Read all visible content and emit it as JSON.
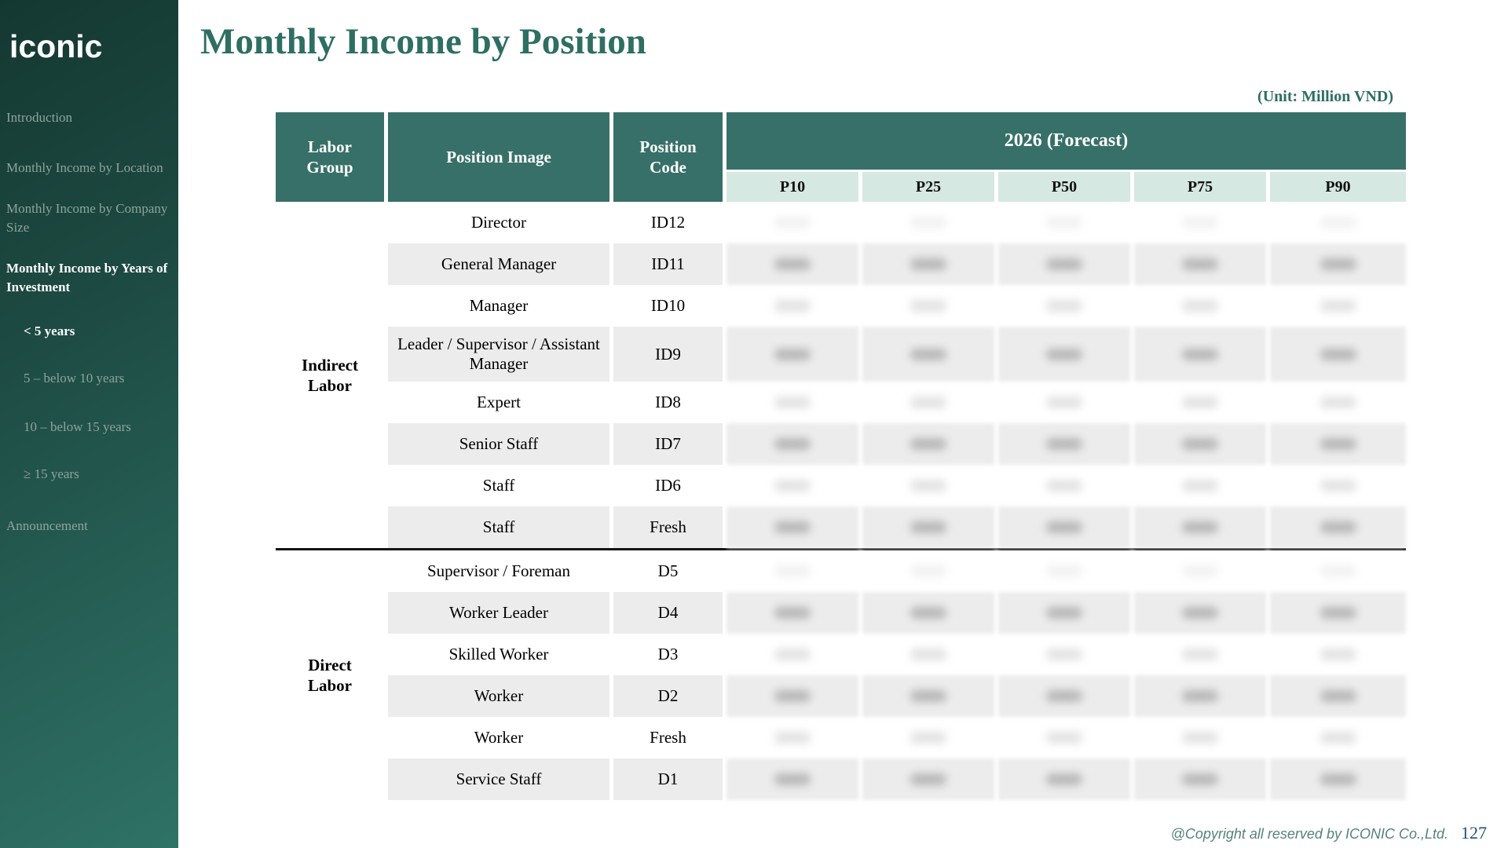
{
  "sidebar": {
    "logo": "iconic",
    "items": [
      {
        "label": "Introduction",
        "active": false,
        "indent": false
      },
      {
        "label": "Monthly Income by Location",
        "active": false,
        "indent": false
      },
      {
        "label": "Monthly Income by Company Size",
        "active": false,
        "indent": false
      },
      {
        "label": "Monthly Income by Years of Investment",
        "active": true,
        "indent": false
      },
      {
        "label": "< 5 years",
        "active": true,
        "indent": true
      },
      {
        "label": "5 – below 10 years",
        "active": false,
        "indent": true
      },
      {
        "label": "10 – below 15 years",
        "active": false,
        "indent": true
      },
      {
        "label": "≥ 15 years",
        "active": false,
        "indent": true
      },
      {
        "label": "Announcement",
        "active": false,
        "indent": false
      }
    ]
  },
  "header": {
    "title": "Monthly Income by Position",
    "unit_label": "(Unit: Million VND)"
  },
  "table": {
    "columns": {
      "labor_group": "Labor\nGroup",
      "position_image": "Position Image",
      "position_code": "Position\nCode",
      "forecast": "2026 (Forecast)"
    },
    "percentiles": [
      "P10",
      "P25",
      "P50",
      "P75",
      "P90"
    ],
    "groups": [
      {
        "name": "Indirect\nLabor",
        "rows": [
          {
            "position": "Director",
            "code": "ID12",
            "tall": false
          },
          {
            "position": "General Manager",
            "code": "ID11",
            "tall": false
          },
          {
            "position": "Manager",
            "code": "ID10",
            "tall": false
          },
          {
            "position": "Leader / Supervisor / Assistant Manager",
            "code": "ID9",
            "tall": true
          },
          {
            "position": "Expert",
            "code": "ID8",
            "tall": false
          },
          {
            "position": "Senior Staff",
            "code": "ID7",
            "tall": false
          },
          {
            "position": "Staff",
            "code": "ID6",
            "tall": false
          },
          {
            "position": "Staff",
            "code": "Fresh",
            "tall": false
          }
        ]
      },
      {
        "name": "Direct\nLabor",
        "rows": [
          {
            "position": "Supervisor / Foreman",
            "code": "D5",
            "tall": false
          },
          {
            "position": "Worker Leader",
            "code": "D4",
            "tall": false
          },
          {
            "position": "Skilled Worker",
            "code": "D3",
            "tall": false
          },
          {
            "position": "Worker",
            "code": "D2",
            "tall": false
          },
          {
            "position": "Worker",
            "code": "Fresh",
            "tall": false
          },
          {
            "position": "Service Staff",
            "code": "D1",
            "tall": false
          }
        ]
      }
    ],
    "data_redacted": true
  },
  "footer": {
    "copyright": "@Copyright all reserved by ICONIC Co.,Ltd.",
    "page_number": "127"
  },
  "colors": {
    "header_teal": "#377068",
    "title_teal": "#2e6e63",
    "mint": "#d5e8e2",
    "row_stripe": "#ececec",
    "sidebar_dark": "#143831",
    "sidebar_light": "#2f7266",
    "footer_teal": "#55827b",
    "page_number_blue": "#1f4e79"
  }
}
